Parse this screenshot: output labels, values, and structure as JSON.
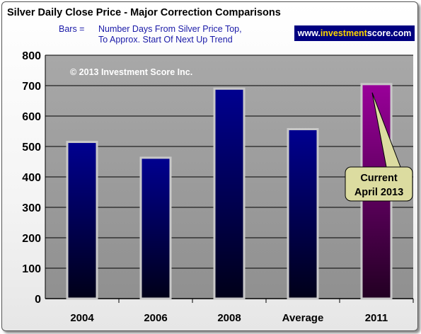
{
  "chart_data": {
    "type": "bar",
    "title": "Silver Daily Close Price - Major Correction Comparisons",
    "subtitle_prefix": "Bars =",
    "subtitle_lines": [
      "Number Days From Silver Price Top,",
      "To Approx. Start Of Next Up Trend"
    ],
    "copyright": "© 2013 Investment Score Inc.",
    "categories": [
      "2004",
      "2006",
      "2008",
      "Average",
      "2011"
    ],
    "values": [
      515,
      463,
      690,
      557,
      705
    ],
    "ylim": [
      0,
      800
    ],
    "yticks": [
      0,
      100,
      200,
      300,
      400,
      500,
      600,
      700,
      800
    ],
    "xlabel": "",
    "ylabel": "",
    "grid": true,
    "colors": {
      "plot_background": "#a0a0a0",
      "bar_top": "#000090",
      "bar_bottom": "#000018",
      "highlight_top": "#9a009a",
      "highlight_bottom": "#220022",
      "bar_border": "#c8c8c8",
      "title": "#000000",
      "subtitle": "#1a1aa8",
      "callout_fill": "#dcdca0"
    },
    "highlight_category": "2011",
    "callout": {
      "lines": [
        "Current",
        "April 2013"
      ],
      "target_category": "2011"
    }
  },
  "watermark": {
    "pre": "www.",
    "highlight": "investment",
    "post": "score.com"
  }
}
